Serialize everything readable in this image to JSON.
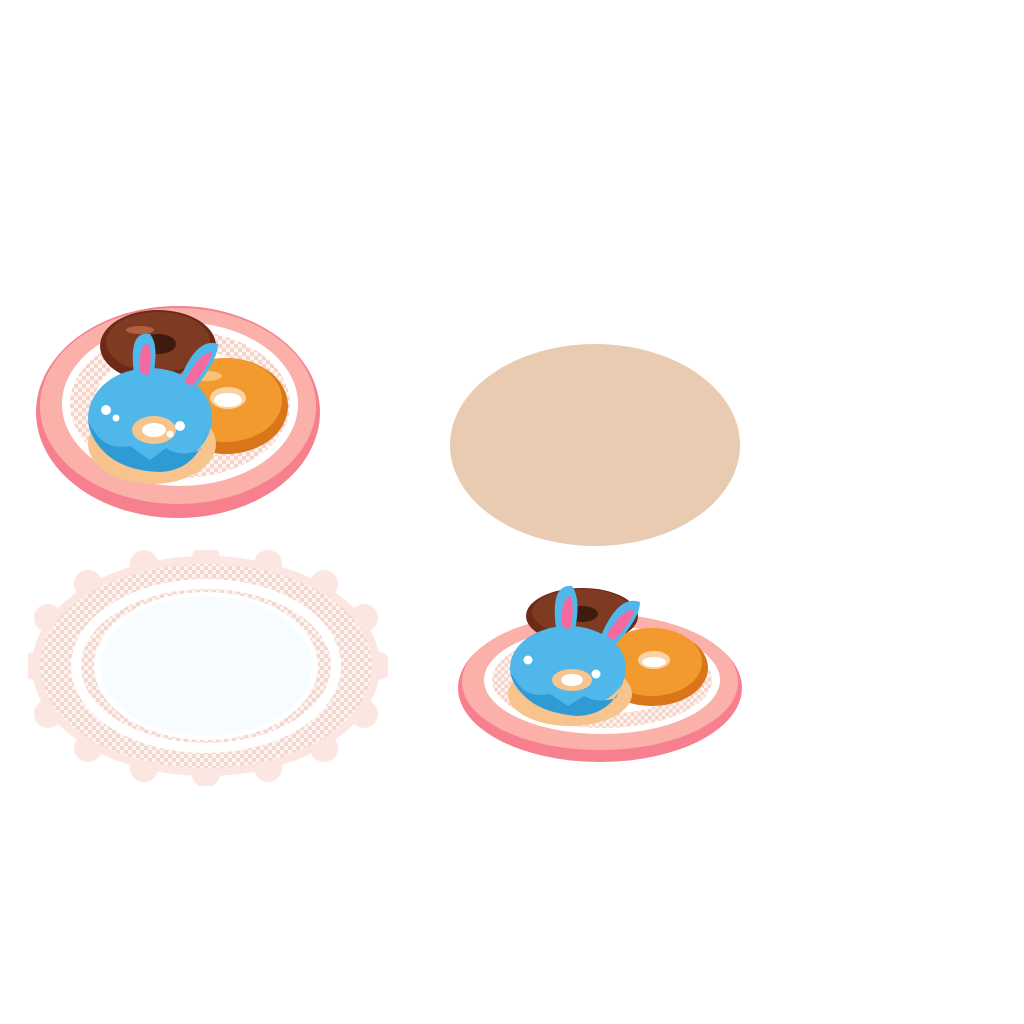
{
  "sprite_sheet": {
    "background_color": "#ffffff",
    "sprites": [
      {
        "id": "plate-with-donuts-large",
        "items": [
          "plate",
          "doily",
          "chocolate-donut",
          "orange-donut",
          "blue-bunny-donut"
        ]
      },
      {
        "id": "plate-shadow",
        "items": [
          "shadow-ellipse"
        ]
      },
      {
        "id": "lace-doily",
        "items": [
          "doily"
        ]
      },
      {
        "id": "plate-with-donuts-small",
        "items": [
          "plate",
          "doily",
          "chocolate-donut",
          "orange-donut",
          "blue-bunny-donut"
        ]
      }
    ],
    "colors": {
      "plate_rim": "#f7808f",
      "plate_face": "#fbb0aa",
      "shadow": "#e8cbb0",
      "doily_lace": "#fbe6e1",
      "doily_center": "#f6fcff",
      "chocolate": "#6b2b18",
      "orange_glaze": "#f39a2e",
      "blue_glaze": "#4fb7ea",
      "dough": "#f7c48d",
      "bunny_ear_inner": "#f46aa0"
    }
  }
}
